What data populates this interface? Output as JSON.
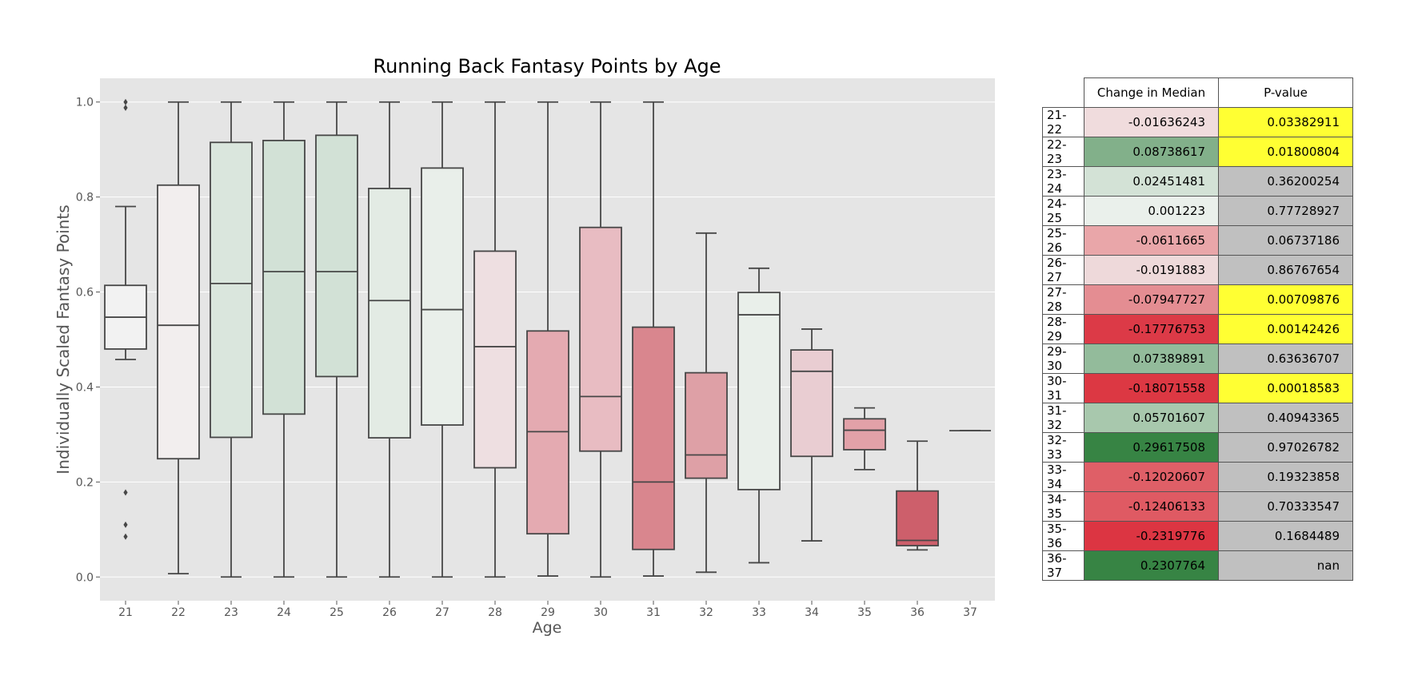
{
  "chart_data": {
    "type": "box",
    "title": "Running Back Fantasy Points by Age",
    "xlabel": "Age",
    "ylabel": "Individually Scaled Fantasy Points",
    "ylim": [
      -0.05,
      1.05
    ],
    "yticks": [
      "0.0",
      "0.2",
      "0.4",
      "0.6",
      "0.8",
      "1.0"
    ],
    "grid": true,
    "categories": [
      "21",
      "22",
      "23",
      "24",
      "25",
      "26",
      "27",
      "28",
      "29",
      "30",
      "31",
      "32",
      "33",
      "34",
      "35",
      "36",
      "37"
    ],
    "boxes": [
      {
        "age": "21",
        "whislo": 0.458,
        "q1": 0.48,
        "med": 0.547,
        "q3": 0.614,
        "whishi": 0.78,
        "fliers": [
          0.085,
          0.11,
          0.178,
          0.988,
          1.0
        ],
        "color": "#f2f2f2"
      },
      {
        "age": "22",
        "whislo": 0.007,
        "q1": 0.249,
        "med": 0.53,
        "q3": 0.825,
        "whishi": 1.0,
        "fliers": [],
        "color": "#f2eeee"
      },
      {
        "age": "23",
        "whislo": 0.0,
        "q1": 0.294,
        "med": 0.618,
        "q3": 0.915,
        "whishi": 1.0,
        "fliers": [],
        "color": "#dae6dd"
      },
      {
        "age": "24",
        "whislo": 0.0,
        "q1": 0.343,
        "med": 0.643,
        "q3": 0.919,
        "whishi": 1.0,
        "fliers": [],
        "color": "#d2e1d6"
      },
      {
        "age": "25",
        "whislo": 0.0,
        "q1": 0.422,
        "med": 0.643,
        "q3": 0.93,
        "whishi": 1.0,
        "fliers": [],
        "color": "#d2e1d6"
      },
      {
        "age": "26",
        "whislo": 0.0,
        "q1": 0.293,
        "med": 0.582,
        "q3": 0.818,
        "whishi": 1.0,
        "fliers": [],
        "color": "#e3ebe4"
      },
      {
        "age": "27",
        "whislo": 0.0,
        "q1": 0.32,
        "med": 0.563,
        "q3": 0.861,
        "whishi": 1.0,
        "fliers": [],
        "color": "#e9efea"
      },
      {
        "age": "28",
        "whislo": 0.0,
        "q1": 0.23,
        "med": 0.485,
        "q3": 0.686,
        "whishi": 1.0,
        "fliers": [],
        "color": "#eedfe1"
      },
      {
        "age": "29",
        "whislo": 0.002,
        "q1": 0.091,
        "med": 0.306,
        "q3": 0.518,
        "whishi": 1.0,
        "fliers": [],
        "color": "#e4aab1"
      },
      {
        "age": "30",
        "whislo": 0.0,
        "q1": 0.265,
        "med": 0.38,
        "q3": 0.736,
        "whishi": 1.0,
        "fliers": [],
        "color": "#e8bcc2"
      },
      {
        "age": "31",
        "whislo": 0.002,
        "q1": 0.058,
        "med": 0.2,
        "q3": 0.526,
        "whishi": 1.0,
        "fliers": [],
        "color": "#d9868e"
      },
      {
        "age": "32",
        "whislo": 0.01,
        "q1": 0.208,
        "med": 0.257,
        "q3": 0.43,
        "whishi": 0.724,
        "fliers": [],
        "color": "#dea0a6"
      },
      {
        "age": "33",
        "whislo": 0.03,
        "q1": 0.184,
        "med": 0.552,
        "q3": 0.599,
        "whishi": 0.65,
        "fliers": [],
        "color": "#e9efea"
      },
      {
        "age": "34",
        "whislo": 0.076,
        "q1": 0.254,
        "med": 0.433,
        "q3": 0.478,
        "whishi": 0.522,
        "fliers": [],
        "color": "#e9cdd2"
      },
      {
        "age": "35",
        "whislo": 0.226,
        "q1": 0.268,
        "med": 0.309,
        "q3": 0.333,
        "whishi": 0.356,
        "fliers": [],
        "color": "#e2a1a8"
      },
      {
        "age": "36",
        "whislo": 0.057,
        "q1": 0.066,
        "med": 0.077,
        "q3": 0.181,
        "whishi": 0.286,
        "fliers": [],
        "color": "#cd5f6b"
      },
      {
        "age": "37",
        "whislo": 0.308,
        "q1": 0.308,
        "med": 0.308,
        "q3": 0.308,
        "whishi": 0.308,
        "fliers": [],
        "color": "#e5e5e5"
      }
    ]
  },
  "table": {
    "headers": [
      "Change in Median",
      "P-value"
    ],
    "rows": [
      {
        "label": "21-22",
        "change": "-0.01636243",
        "change_color": "#f0dcdd",
        "pvalue": "0.03382911",
        "pvalue_color": "#ffff33"
      },
      {
        "label": "22-23",
        "change": "0.08738617",
        "change_color": "#82b08a",
        "pvalue": "0.01800804",
        "pvalue_color": "#ffff33"
      },
      {
        "label": "23-24",
        "change": "0.02451481",
        "change_color": "#d3e2d6",
        "pvalue": "0.36200254",
        "pvalue_color": "#c0c0c0"
      },
      {
        "label": "24-25",
        "change": "0.001223",
        "change_color": "#eaf0eb",
        "pvalue": "0.77728927",
        "pvalue_color": "#c0c0c0"
      },
      {
        "label": "25-26",
        "change": "-0.0611665",
        "change_color": "#e9a6a9",
        "pvalue": "0.06737186",
        "pvalue_color": "#c0c0c0"
      },
      {
        "label": "26-27",
        "change": "-0.0191883",
        "change_color": "#eed9da",
        "pvalue": "0.86767654",
        "pvalue_color": "#c0c0c0"
      },
      {
        "label": "27-28",
        "change": "-0.07947727",
        "change_color": "#e48d92",
        "pvalue": "0.00709876",
        "pvalue_color": "#ffff33"
      },
      {
        "label": "28-29",
        "change": "-0.17776753",
        "change_color": "#dc3a47",
        "pvalue": "0.00142426",
        "pvalue_color": "#ffff33"
      },
      {
        "label": "29-30",
        "change": "0.07389891",
        "change_color": "#93bb9b",
        "pvalue": "0.63636707",
        "pvalue_color": "#c0c0c0"
      },
      {
        "label": "30-31",
        "change": "-0.18071558",
        "change_color": "#dc3843",
        "pvalue": "0.00018583",
        "pvalue_color": "#ffff33"
      },
      {
        "label": "31-32",
        "change": "0.05701607",
        "change_color": "#a8c8ad",
        "pvalue": "0.40943365",
        "pvalue_color": "#c0c0c0"
      },
      {
        "label": "32-33",
        "change": "0.29617508",
        "change_color": "#378444",
        "pvalue": "0.97026782",
        "pvalue_color": "#c0c0c0"
      },
      {
        "label": "33-34",
        "change": "-0.12020607",
        "change_color": "#df5f67",
        "pvalue": "0.19323858",
        "pvalue_color": "#c0c0c0"
      },
      {
        "label": "34-35",
        "change": "-0.12406133",
        "change_color": "#df5a63",
        "pvalue": "0.70333547",
        "pvalue_color": "#c0c0c0"
      },
      {
        "label": "35-36",
        "change": "-0.2319776",
        "change_color": "#dc3542",
        "pvalue": "0.1684489",
        "pvalue_color": "#c0c0c0"
      },
      {
        "label": "36-37",
        "change": "0.2307764",
        "change_color": "#378444",
        "pvalue": "nan",
        "pvalue_color": "#c0c0c0"
      }
    ]
  }
}
